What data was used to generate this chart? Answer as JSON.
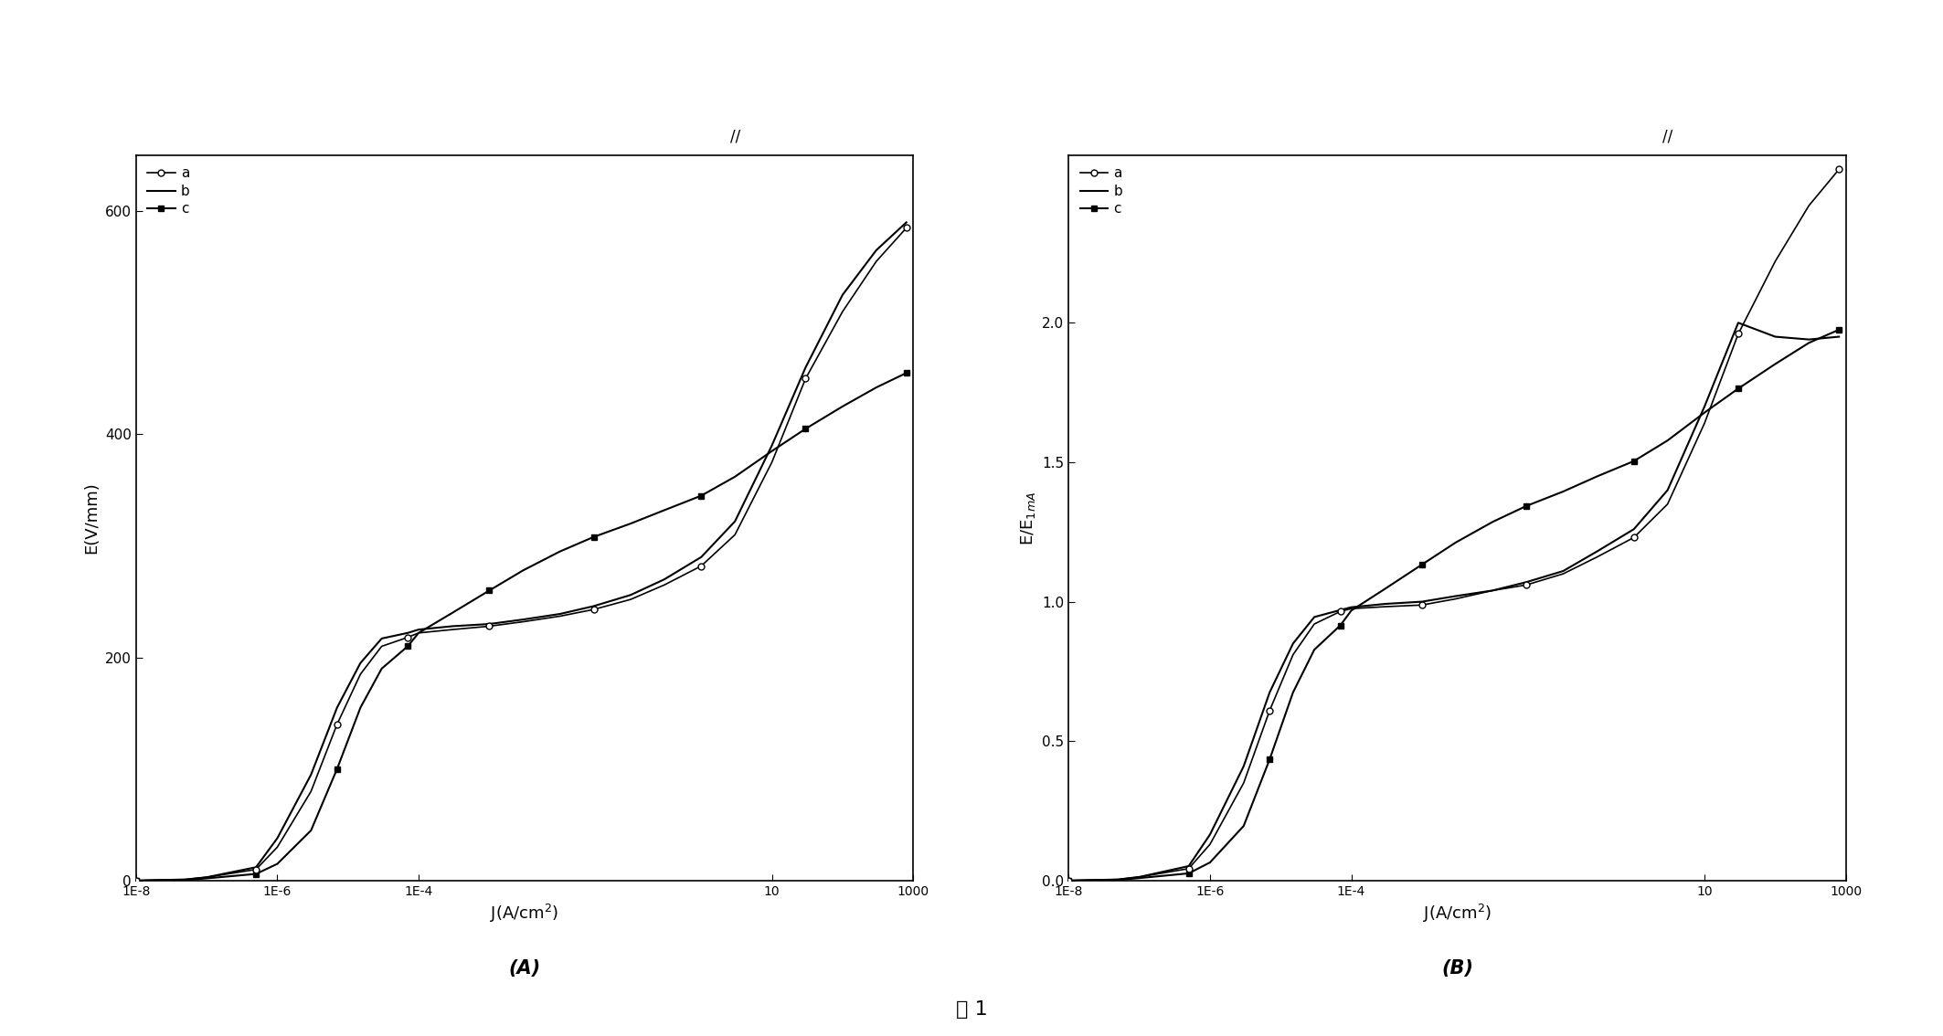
{
  "xlabel": "J(A/cm$^2$)",
  "ylabel_A": "E(V/mm)",
  "ylabel_B": "E/E$_{1mA}$",
  "figure_caption": "图 1",
  "legend_labels": [
    "a",
    "b",
    "c"
  ],
  "background_color": "#ffffff",
  "ylim_A": [
    0,
    650
  ],
  "ylim_B": [
    0.0,
    2.6
  ],
  "yticks_A": [
    0,
    200,
    400,
    600
  ],
  "yticks_B": [
    0.0,
    0.5,
    1.0,
    1.5,
    2.0
  ],
  "curve_a_J": [
    1e-08,
    5e-08,
    1e-07,
    5e-07,
    1e-06,
    3e-06,
    7e-06,
    1.5e-05,
    3e-05,
    7e-05,
    0.0001,
    0.0003,
    0.001,
    0.003,
    0.01,
    0.03,
    0.1,
    0.3,
    1.0,
    3.0,
    10.0,
    30.0,
    100.0,
    300.0,
    800.0
  ],
  "curve_a_E_A": [
    0,
    1,
    3,
    10,
    30,
    80,
    140,
    185,
    210,
    218,
    222,
    225,
    228,
    232,
    237,
    243,
    252,
    265,
    282,
    310,
    375,
    450,
    510,
    555,
    585
  ],
  "curve_b_J": [
    1e-08,
    5e-08,
    1e-07,
    5e-07,
    1e-06,
    3e-06,
    7e-06,
    1.5e-05,
    3e-05,
    7e-05,
    0.0001,
    0.0003,
    0.001,
    0.003,
    0.01,
    0.03,
    0.1,
    0.3,
    1.0,
    3.0,
    10.0,
    30.0,
    100.0,
    300.0,
    800.0
  ],
  "curve_b_E_A": [
    0,
    1,
    3,
    12,
    38,
    95,
    155,
    195,
    217,
    222,
    225,
    228,
    230,
    234,
    239,
    246,
    256,
    270,
    290,
    322,
    390,
    460,
    525,
    565,
    590
  ],
  "curve_c_J": [
    1e-08,
    5e-08,
    1e-07,
    5e-07,
    1e-06,
    3e-06,
    7e-06,
    1.5e-05,
    3e-05,
    7e-05,
    0.0001,
    0.0003,
    0.001,
    0.003,
    0.01,
    0.03,
    0.1,
    0.3,
    1.0,
    3.0,
    10.0,
    30.0,
    100.0,
    300.0,
    800.0
  ],
  "curve_c_E_A": [
    0,
    0.5,
    2,
    6,
    15,
    45,
    100,
    155,
    190,
    210,
    222,
    240,
    260,
    278,
    295,
    308,
    320,
    332,
    345,
    362,
    385,
    405,
    425,
    442,
    455
  ],
  "curve_a_E_B": [
    0,
    0.004,
    0.013,
    0.043,
    0.13,
    0.35,
    0.61,
    0.81,
    0.92,
    0.965,
    0.975,
    0.982,
    0.988,
    1.01,
    1.04,
    1.06,
    1.1,
    1.16,
    1.23,
    1.35,
    1.64,
    1.96,
    2.22,
    2.42,
    2.55
  ],
  "curve_b_E_B": [
    0,
    0.004,
    0.013,
    0.052,
    0.165,
    0.41,
    0.675,
    0.85,
    0.945,
    0.97,
    0.98,
    0.992,
    1.0,
    1.02,
    1.04,
    1.07,
    1.11,
    1.18,
    1.26,
    1.4,
    1.7,
    2.0,
    1.95,
    1.94,
    1.95
  ],
  "curve_c_E_B": [
    0,
    0.002,
    0.009,
    0.026,
    0.065,
    0.196,
    0.435,
    0.675,
    0.828,
    0.915,
    0.968,
    1.046,
    1.133,
    1.212,
    1.286,
    1.343,
    1.395,
    1.449,
    1.504,
    1.578,
    1.678,
    1.764,
    1.852,
    1.928,
    1.975
  ]
}
